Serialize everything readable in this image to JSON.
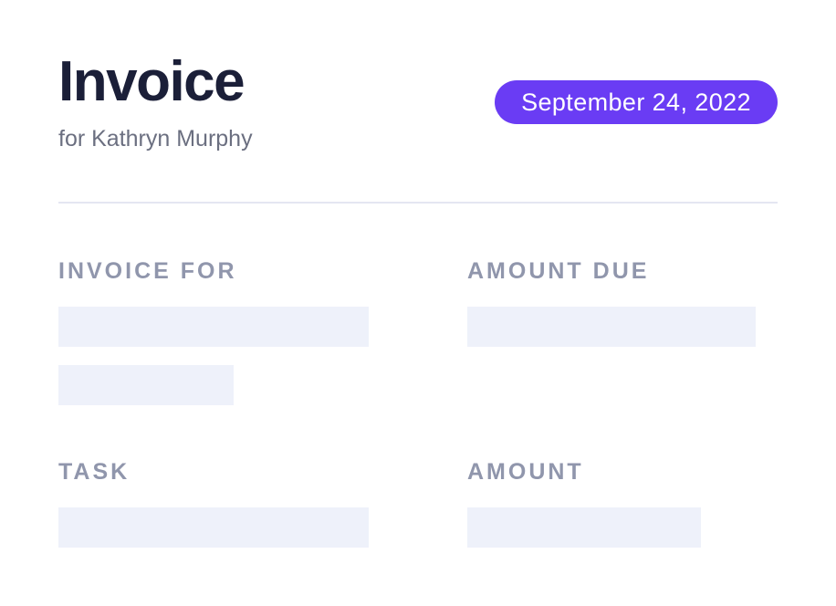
{
  "header": {
    "title": "Invoice",
    "subtitle": "for Kathryn Murphy",
    "date": "September 24, 2022"
  },
  "sections": {
    "invoice_for_label": "INVOICE FOR",
    "amount_due_label": "AMOUNT DUE",
    "task_label": "TASK",
    "amount_label": "AMOUNT"
  },
  "colors": {
    "accent": "#6a3cf4",
    "title": "#1b1f38",
    "muted": "#9096ac",
    "placeholder": "#eef1fa"
  }
}
